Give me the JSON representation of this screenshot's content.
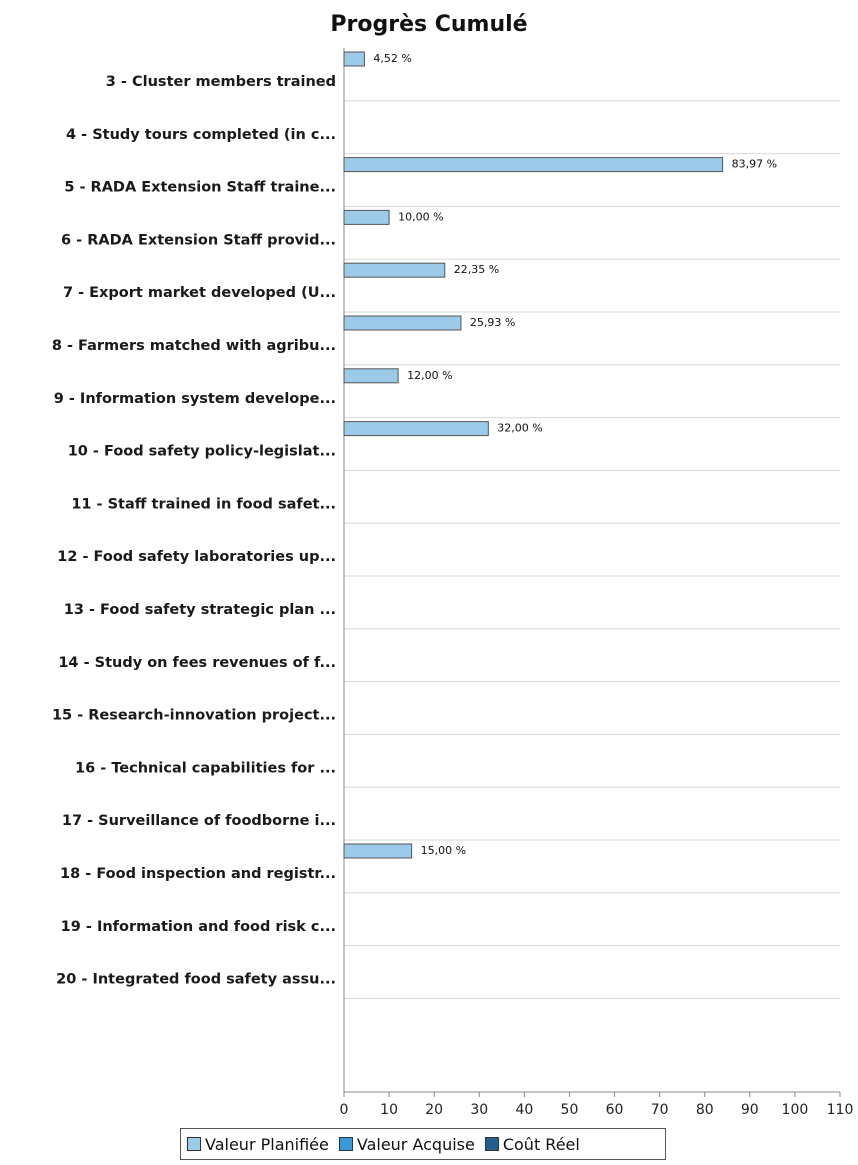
{
  "chart_data": {
    "type": "bar",
    "orientation": "horizontal",
    "title": "Progrès Cumulé",
    "xlabel": "",
    "ylabel": "",
    "xlim": [
      0,
      110
    ],
    "x_ticks": [
      "0",
      "10",
      "20",
      "30",
      "40",
      "50",
      "60",
      "70",
      "80",
      "90",
      "100",
      "110"
    ],
    "grid": true,
    "legend_position": "bottom",
    "categories": [
      "3 - Cluster members trained",
      "4 - Study tours completed (in c...",
      "5 - RADA Extension Staff traine...",
      "6 - RADA Extension Staff provid...",
      "7 - Export market developed  (U...",
      "8 - Farmers matched with agribu...",
      "9 - Information system develope...",
      "10 - Food safety policy-legislat...",
      "11 - Staff trained in food safet...",
      "12 - Food safety laboratories up...",
      "13 - Food safety strategic plan ...",
      "14 - Study on fees revenues of f...",
      "15 - Research-innovation project...",
      "16 - Technical capabilities for ...",
      "17 - Surveillance of foodborne i...",
      "18 - Food inspection and registr...",
      "19 - Information and food risk c...",
      "20 - Integrated food safety assu..."
    ],
    "series": [
      {
        "name": "Valeur Planifiée",
        "color": "#9ccbe9",
        "values": [
          4.52,
          null,
          83.97,
          10.0,
          22.35,
          25.93,
          12.0,
          32.0,
          null,
          null,
          null,
          null,
          null,
          null,
          null,
          15.0,
          null,
          null
        ],
        "labels": [
          "4,52 %",
          "",
          "83,97 %",
          "10,00 %",
          "22,35 %",
          "25,93 %",
          "12,00 %",
          "32,00 %",
          "",
          "",
          "",
          "",
          "",
          "",
          "",
          "15,00 %",
          "",
          ""
        ]
      },
      {
        "name": "Valeur Acquise",
        "color": "#3a9ad9",
        "values": [
          null,
          null,
          null,
          null,
          null,
          null,
          null,
          null,
          null,
          null,
          null,
          null,
          null,
          null,
          null,
          null,
          null,
          null
        ]
      },
      {
        "name": "Coût Réel",
        "color": "#1f5f8b",
        "values": [
          null,
          null,
          null,
          null,
          null,
          null,
          null,
          null,
          null,
          null,
          null,
          null,
          null,
          null,
          null,
          null,
          null,
          null
        ]
      }
    ]
  }
}
